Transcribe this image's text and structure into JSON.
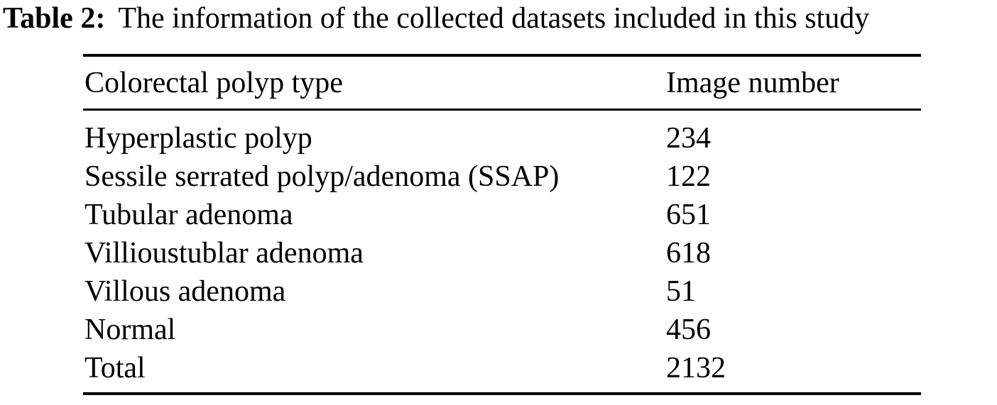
{
  "caption": {
    "label": "Table 2:",
    "text": "The information of the collected datasets included in this study"
  },
  "table": {
    "columns": [
      "Colorectal polyp type",
      "Image number"
    ],
    "rows": [
      {
        "type": "Hyperplastic polyp",
        "count": "234"
      },
      {
        "type": "Sessile serrated polyp/adenoma (SSAP)",
        "count": "122"
      },
      {
        "type": "Tubular adenoma",
        "count": "651"
      },
      {
        "type": "Villioustublar adenoma",
        "count": "618"
      },
      {
        "type": "Villous adenoma",
        "count": "51"
      },
      {
        "type": "Normal",
        "count": "456"
      },
      {
        "type": "Total",
        "count": "2132"
      }
    ]
  },
  "colors": {
    "text": "#000000",
    "background": "#ffffff",
    "rule": "#000000"
  }
}
